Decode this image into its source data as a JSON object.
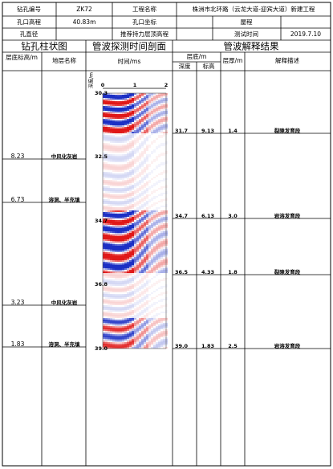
{
  "header": {
    "hole_no_label": "钻孔编号",
    "hole_no": "ZK72",
    "project_label": "工程名称",
    "project": "株洲市北环路（云龙大道-迎宾大道）新建工程",
    "elev_label": "孔口高程",
    "elev": "40.83m",
    "coord_label": "孔口坐标",
    "coord_sys": "屋程",
    "diameter_label": "孔直径",
    "bearing_label": "推荐持力层顶高程",
    "test_time_label": "测试时间",
    "test_time": "2019.7.10"
  },
  "sections": {
    "column": "钻孔柱状图",
    "profile": "管波探测时间剖面",
    "result": "管波解释结果"
  },
  "column": {
    "bottom_elev_label": "层底标高/m",
    "stratum_label": "地层名称",
    "layers": [
      {
        "elev": "8.23",
        "name": "中风化灰岩"
      },
      {
        "elev": "6.73",
        "name": "溶洞、半充填"
      },
      {
        "elev": "3.23",
        "name": "中风化灰岩"
      },
      {
        "elev": "1.83",
        "name": "溶洞、半充填"
      }
    ]
  },
  "profile": {
    "time_label": "时间/ms",
    "depth_label": "深度/m",
    "time_ticks": [
      "0",
      "1",
      "2"
    ],
    "depth_ticks": [
      "30.3",
      "32.5",
      "34.7",
      "36.8",
      "39.0"
    ]
  },
  "result": {
    "bottom_label": "层底/m",
    "depth_label": "深度",
    "elev_label": "标高",
    "thickness_label": "层厚/m",
    "desc_label": "解释描述",
    "rows": [
      [
        "31.7",
        "9.13",
        "1.4",
        "裂隙发育段"
      ],
      [
        "34.7",
        "6.13",
        "3.0",
        "岩溶发育段"
      ],
      [
        "36.5",
        "4.33",
        "1.8",
        "裂隙发育段"
      ],
      [
        "39.0",
        "1.83",
        "2.5",
        "岩溶发育段"
      ]
    ]
  }
}
